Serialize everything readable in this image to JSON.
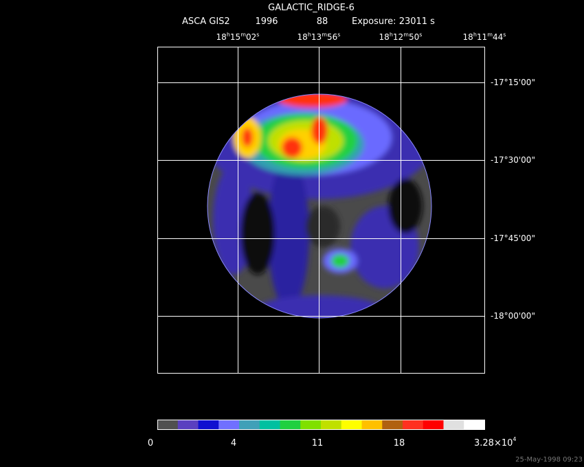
{
  "header": {
    "title": "GALACTIC_RIDGE-6",
    "instrument": "ASCA GIS2",
    "year": "1996",
    "number": "88",
    "exposure": "Exposure: 23011 s"
  },
  "ra_labels": [
    [
      "18",
      "h",
      "15",
      "m",
      "02",
      "s"
    ],
    [
      "18",
      "h",
      "13",
      "m",
      "56",
      "s"
    ],
    [
      "18",
      "h",
      "12",
      "m",
      "50",
      "s"
    ],
    [
      "18",
      "h",
      "11",
      "m",
      "44",
      "s"
    ]
  ],
  "dec_labels": [
    "-17°15'00\"",
    "-17°30'00\"",
    "-17°45'00\"",
    "-18°00'00\""
  ],
  "colorbar": {
    "labels": [
      "0",
      "4",
      "11",
      "18"
    ],
    "max": {
      "mantissa": "3.28×10",
      "exponent": "4"
    }
  },
  "timestamp": "25-May-1998 09:23"
}
